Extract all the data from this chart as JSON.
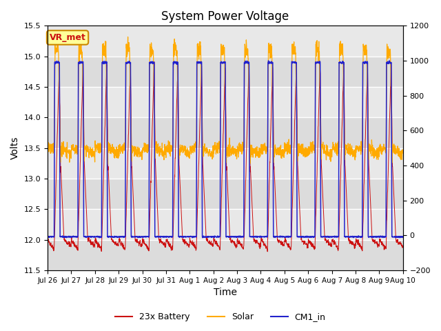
{
  "title": "System Power Voltage",
  "xlabel": "Time",
  "ylabel": "Volts",
  "xlim_days": 15,
  "ylim_left": [
    11.5,
    15.5
  ],
  "ylim_right": [
    -200,
    1200
  ],
  "figure_bg": "#ffffff",
  "plot_bg": "#e8e8e8",
  "grid_color": "#ffffff",
  "xtick_labels": [
    "Jul 26",
    "Jul 27",
    "Jul 28",
    "Jul 29",
    "Jul 30",
    "Jul 31",
    "Aug 1",
    "Aug 2",
    "Aug 3",
    "Aug 4",
    "Aug 5",
    "Aug 6",
    "Aug 7",
    "Aug 8",
    "Aug 9",
    "Aug 10"
  ],
  "colors": {
    "battery": "#cc1111",
    "solar": "#ffaa00",
    "cm1": "#2222cc"
  },
  "legend_labels": [
    "23x Battery",
    "Solar",
    "CM1_in"
  ],
  "vr_met_label": "VR_met",
  "vr_met_color": "#cc1111",
  "vr_met_bg": "#ffff99",
  "vr_met_border": "#cc8800",
  "n_days": 15,
  "pts_per_day": 144,
  "title_fontsize": 12,
  "axis_fontsize": 10,
  "tick_fontsize": 8,
  "legend_fontsize": 9
}
